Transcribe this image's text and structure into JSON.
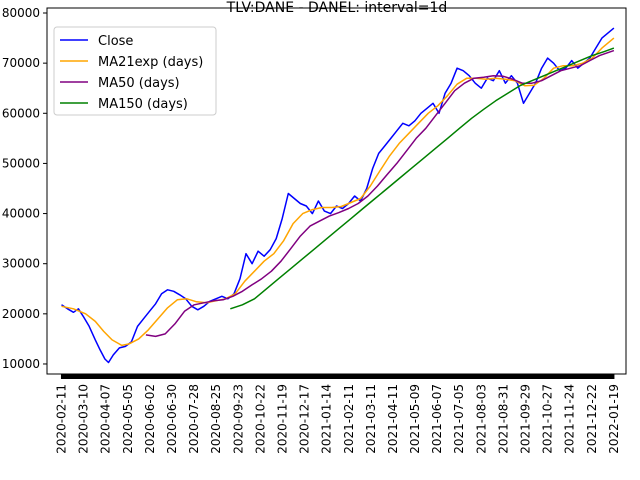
{
  "chart_data": {
    "type": "line",
    "title": "TLV:DANE - DANEL: interval=1d",
    "xlabel": "",
    "ylabel": "",
    "x_ticks": [
      "2020-02-11",
      "2020-03-10",
      "2020-04-07",
      "2020-05-05",
      "2020-06-02",
      "2020-06-30",
      "2020-07-28",
      "2020-08-25",
      "2020-09-23",
      "2020-10-22",
      "2020-11-19",
      "2020-12-17",
      "2021-01-14",
      "2021-02-11",
      "2021-03-11",
      "2021-04-11",
      "2021-05-09",
      "2021-06-07",
      "2021-07-05",
      "2021-08-03",
      "2021-08-31",
      "2021-09-29",
      "2021-10-27",
      "2021-11-24",
      "2021-12-22",
      "2022-01-19"
    ],
    "y_tick_labels": [
      "10000",
      "20000",
      "30000",
      "40000",
      "50000",
      "60000",
      "70000",
      "80000"
    ],
    "y_tick_values": [
      10000,
      20000,
      30000,
      40000,
      50000,
      60000,
      70000,
      80000
    ],
    "ylim": [
      8000,
      81000
    ],
    "legend": [
      "Close",
      "MA21exp (days)",
      "MA50 (days)",
      "MA150 (days)"
    ],
    "legend_position": "top-left",
    "grid": false,
    "series": [
      {
        "name": "Close",
        "color": "#0000ff",
        "points": [
          [
            0,
            21800
          ],
          [
            0.5,
            21000
          ],
          [
            1,
            20300
          ],
          [
            1.4,
            21000
          ],
          [
            1.8,
            19500
          ],
          [
            2.3,
            17500
          ],
          [
            2.8,
            14800
          ],
          [
            3.2,
            12800
          ],
          [
            3.6,
            11000
          ],
          [
            3.9,
            10300
          ],
          [
            4.3,
            11800
          ],
          [
            4.8,
            13200
          ],
          [
            5.3,
            13500
          ],
          [
            5.8,
            14400
          ],
          [
            6.3,
            17500
          ],
          [
            6.8,
            19000
          ],
          [
            7.3,
            20500
          ],
          [
            7.8,
            22000
          ],
          [
            8.3,
            24000
          ],
          [
            8.8,
            24800
          ],
          [
            9.3,
            24500
          ],
          [
            9.8,
            23800
          ],
          [
            10.3,
            23000
          ],
          [
            10.8,
            21500
          ],
          [
            11.3,
            20800
          ],
          [
            11.8,
            21500
          ],
          [
            12.3,
            22500
          ],
          [
            12.8,
            23000
          ],
          [
            13.3,
            23500
          ],
          [
            13.8,
            23000
          ],
          [
            14.3,
            24000
          ],
          [
            14.8,
            27000
          ],
          [
            15.3,
            32000
          ],
          [
            15.8,
            30000
          ],
          [
            16.3,
            32500
          ],
          [
            16.8,
            31500
          ],
          [
            17.3,
            32800
          ],
          [
            17.8,
            35000
          ],
          [
            18.3,
            39000
          ],
          [
            18.8,
            44000
          ],
          [
            19.3,
            43000
          ],
          [
            19.8,
            42000
          ],
          [
            20.3,
            41500
          ],
          [
            20.8,
            40000
          ],
          [
            21.3,
            42500
          ],
          [
            21.8,
            40500
          ],
          [
            22.3,
            40000
          ],
          [
            22.8,
            41500
          ],
          [
            23.3,
            41000
          ],
          [
            23.8,
            42000
          ],
          [
            24.3,
            43500
          ],
          [
            24.8,
            42500
          ],
          [
            25.3,
            45000
          ],
          [
            25.8,
            49000
          ],
          [
            26.3,
            52000
          ],
          [
            26.8,
            53500
          ],
          [
            27.3,
            55000
          ],
          [
            27.8,
            56500
          ],
          [
            28.3,
            58000
          ],
          [
            28.8,
            57500
          ],
          [
            29.3,
            58500
          ],
          [
            29.8,
            60000
          ],
          [
            30.3,
            61000
          ],
          [
            30.8,
            62000
          ],
          [
            31.3,
            60000
          ],
          [
            31.8,
            64000
          ],
          [
            32.3,
            66000
          ],
          [
            32.8,
            69000
          ],
          [
            33.3,
            68500
          ],
          [
            33.8,
            67500
          ],
          [
            34.3,
            66000
          ],
          [
            34.8,
            65000
          ],
          [
            35.3,
            67000
          ],
          [
            35.8,
            66500
          ],
          [
            36.3,
            68500
          ],
          [
            36.8,
            66000
          ],
          [
            37.3,
            67500
          ],
          [
            37.8,
            66000
          ],
          [
            38.3,
            62000
          ],
          [
            38.8,
            64000
          ],
          [
            39.3,
            66000
          ],
          [
            39.8,
            69000
          ],
          [
            40.3,
            71000
          ],
          [
            40.8,
            70000
          ],
          [
            41.3,
            68500
          ],
          [
            41.8,
            69000
          ],
          [
            42.3,
            70500
          ],
          [
            42.8,
            69000
          ],
          [
            43.3,
            70000
          ],
          [
            43.8,
            71000
          ],
          [
            44.3,
            73000
          ],
          [
            44.8,
            75000
          ],
          [
            45.3,
            76000
          ],
          [
            45.8,
            77000
          ]
        ]
      },
      {
        "name": "MA21exp (days)",
        "color": "#ffa500",
        "points": [
          [
            0,
            21500
          ],
          [
            1,
            21000
          ],
          [
            2,
            20000
          ],
          [
            2.8,
            18500
          ],
          [
            3.5,
            16500
          ],
          [
            4.2,
            14800
          ],
          [
            5,
            13700
          ],
          [
            5.6,
            14000
          ],
          [
            6.4,
            15000
          ],
          [
            7.2,
            16800
          ],
          [
            8,
            19000
          ],
          [
            8.8,
            21200
          ],
          [
            9.6,
            22800
          ],
          [
            10.4,
            23000
          ],
          [
            11.2,
            22400
          ],
          [
            12,
            22200
          ],
          [
            12.8,
            22600
          ],
          [
            13.6,
            23000
          ],
          [
            14.4,
            24000
          ],
          [
            15.2,
            26500
          ],
          [
            16,
            28500
          ],
          [
            16.8,
            30500
          ],
          [
            17.6,
            32000
          ],
          [
            18.4,
            34500
          ],
          [
            19.2,
            38000
          ],
          [
            20,
            40000
          ],
          [
            20.8,
            40800
          ],
          [
            21.6,
            41200
          ],
          [
            22.4,
            41200
          ],
          [
            23.2,
            41400
          ],
          [
            24,
            42200
          ],
          [
            24.8,
            43000
          ],
          [
            25.6,
            45500
          ],
          [
            26.4,
            48500
          ],
          [
            27.2,
            51500
          ],
          [
            28,
            54000
          ],
          [
            28.8,
            56000
          ],
          [
            29.6,
            58000
          ],
          [
            30.4,
            60000
          ],
          [
            31.2,
            61500
          ],
          [
            32,
            63500
          ],
          [
            32.8,
            65800
          ],
          [
            33.6,
            67000
          ],
          [
            34.4,
            67000
          ],
          [
            35.2,
            66800
          ],
          [
            36,
            67000
          ],
          [
            36.8,
            66800
          ],
          [
            37.6,
            66500
          ],
          [
            38.4,
            65500
          ],
          [
            39.2,
            65600
          ],
          [
            40,
            67000
          ],
          [
            40.8,
            69000
          ],
          [
            41.6,
            69500
          ],
          [
            42.4,
            69500
          ],
          [
            43.2,
            70000
          ],
          [
            44,
            71000
          ],
          [
            44.8,
            73000
          ],
          [
            45.8,
            75000
          ]
        ]
      },
      {
        "name": "MA50 (days)",
        "color": "#800080",
        "points": [
          [
            7,
            15800
          ],
          [
            7.8,
            15500
          ],
          [
            8.6,
            16000
          ],
          [
            9.4,
            18000
          ],
          [
            10.2,
            20500
          ],
          [
            11,
            21800
          ],
          [
            11.8,
            22200
          ],
          [
            12.6,
            22600
          ],
          [
            13.4,
            22800
          ],
          [
            14.2,
            23500
          ],
          [
            15,
            24500
          ],
          [
            15.8,
            25800
          ],
          [
            16.6,
            27000
          ],
          [
            17.4,
            28500
          ],
          [
            18.2,
            30500
          ],
          [
            19,
            33000
          ],
          [
            19.8,
            35500
          ],
          [
            20.6,
            37500
          ],
          [
            21.4,
            38500
          ],
          [
            22.2,
            39500
          ],
          [
            23,
            40200
          ],
          [
            23.8,
            41000
          ],
          [
            24.6,
            42000
          ],
          [
            25.4,
            43500
          ],
          [
            26.2,
            45500
          ],
          [
            27,
            47800
          ],
          [
            27.8,
            50000
          ],
          [
            28.6,
            52500
          ],
          [
            29.4,
            55000
          ],
          [
            30.2,
            57000
          ],
          [
            31,
            59500
          ],
          [
            31.8,
            62000
          ],
          [
            32.6,
            64500
          ],
          [
            33.4,
            66000
          ],
          [
            34.2,
            67000
          ],
          [
            35,
            67200
          ],
          [
            35.8,
            67500
          ],
          [
            36.6,
            67400
          ],
          [
            37.4,
            66800
          ],
          [
            38.2,
            66000
          ],
          [
            39,
            66000
          ],
          [
            39.8,
            66500
          ],
          [
            40.6,
            67500
          ],
          [
            41.4,
            68500
          ],
          [
            42.2,
            69000
          ],
          [
            43,
            69500
          ],
          [
            43.8,
            70500
          ],
          [
            44.6,
            71500
          ],
          [
            45.8,
            72500
          ]
        ]
      },
      {
        "name": "MA150 (days)",
        "color": "#008000",
        "points": [
          [
            14,
            21000
          ],
          [
            15,
            21800
          ],
          [
            16,
            23000
          ],
          [
            17,
            25000
          ],
          [
            18,
            27000
          ],
          [
            19,
            29000
          ],
          [
            20,
            31000
          ],
          [
            21,
            33000
          ],
          [
            22,
            35000
          ],
          [
            23,
            37000
          ],
          [
            24,
            39000
          ],
          [
            25,
            41000
          ],
          [
            26,
            43000
          ],
          [
            27,
            45000
          ],
          [
            28,
            47000
          ],
          [
            29,
            49000
          ],
          [
            30,
            51000
          ],
          [
            31,
            53000
          ],
          [
            32,
            55000
          ],
          [
            33,
            57000
          ],
          [
            34,
            59000
          ],
          [
            35,
            60800
          ],
          [
            36,
            62500
          ],
          [
            37,
            64000
          ],
          [
            38,
            65500
          ],
          [
            39,
            66500
          ],
          [
            40,
            67500
          ],
          [
            41,
            68500
          ],
          [
            42,
            69500
          ],
          [
            43,
            70500
          ],
          [
            44,
            71500
          ],
          [
            45,
            72300
          ],
          [
            45.8,
            73000
          ]
        ]
      }
    ]
  }
}
